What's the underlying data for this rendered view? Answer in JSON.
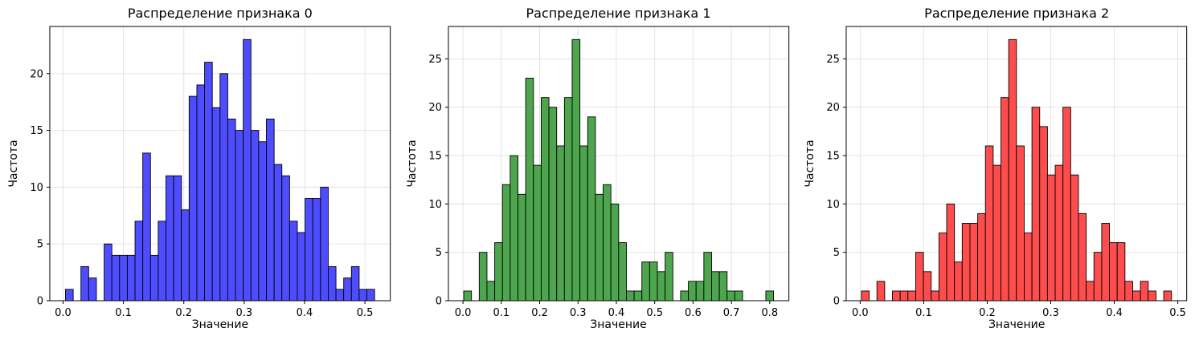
{
  "figure": {
    "background": "#ffffff",
    "grid_color": "#e0e0e0",
    "spine_color": "#000000"
  },
  "chart_data": [
    {
      "type": "bar",
      "subtype": "histogram",
      "title": "Распределение признака 0",
      "xlabel": "Значение",
      "ylabel": "Частота",
      "color": "#4d4dff",
      "edge_color": "#000000",
      "grid": true,
      "legend": false,
      "xlim": [
        -0.022,
        0.542
      ],
      "ylim": [
        0,
        24.15
      ],
      "xticks": [
        0.0,
        0.1,
        0.2,
        0.3,
        0.4,
        0.5
      ],
      "yticks": [
        0,
        5,
        10,
        15,
        20
      ],
      "xtick_decimals": 1,
      "bins": {
        "start": 0.004,
        "width": 0.0128
      },
      "counts": [
        1,
        0,
        3,
        2,
        0,
        5,
        4,
        4,
        4,
        7,
        13,
        4,
        7,
        11,
        11,
        8,
        18,
        19,
        21,
        17,
        20,
        16,
        15,
        23,
        15,
        14,
        16,
        12,
        11,
        7,
        6,
        9,
        9,
        10,
        3,
        1,
        2,
        3,
        1,
        1
      ]
    },
    {
      "type": "bar",
      "subtype": "histogram",
      "title": "Распределение признака 1",
      "xlabel": "Значение",
      "ylabel": "Частота",
      "color": "#4da64d",
      "edge_color": "#000000",
      "grid": true,
      "legend": false,
      "xlim": [
        -0.038,
        0.85
      ],
      "ylim": [
        0,
        28.35
      ],
      "xticks": [
        0.0,
        0.1,
        0.2,
        0.3,
        0.4,
        0.5,
        0.6,
        0.7,
        0.8
      ],
      "yticks": [
        0,
        5,
        10,
        15,
        20,
        25
      ],
      "xtick_decimals": 1,
      "bins": {
        "start": 0.002,
        "width": 0.0202
      },
      "counts": [
        1,
        0,
        5,
        2,
        6,
        12,
        15,
        11,
        23,
        14,
        21,
        20,
        16,
        21,
        27,
        16,
        19,
        11,
        12,
        10,
        6,
        1,
        1,
        4,
        4,
        3,
        5,
        0,
        1,
        2,
        2,
        5,
        3,
        3,
        1,
        1,
        0,
        0,
        0,
        1
      ]
    },
    {
      "type": "bar",
      "subtype": "histogram",
      "title": "Распределение признака 2",
      "xlabel": "Значение",
      "ylabel": "Частота",
      "color": "#ff4d4d",
      "edge_color": "#000000",
      "grid": true,
      "legend": false,
      "xlim": [
        -0.022,
        0.514
      ],
      "ylim": [
        0,
        28.35
      ],
      "xticks": [
        0.0,
        0.1,
        0.2,
        0.3,
        0.4,
        0.5
      ],
      "yticks": [
        0,
        5,
        10,
        15,
        20,
        25
      ],
      "xtick_decimals": 1,
      "bins": {
        "start": 0.002,
        "width": 0.0122
      },
      "counts": [
        1,
        0,
        2,
        0,
        1,
        1,
        1,
        5,
        3,
        1,
        7,
        10,
        4,
        8,
        8,
        9,
        16,
        14,
        21,
        27,
        16,
        7,
        20,
        18,
        13,
        14,
        20,
        13,
        9,
        2,
        5,
        8,
        6,
        6,
        2,
        1,
        2,
        1,
        0,
        1
      ]
    }
  ]
}
